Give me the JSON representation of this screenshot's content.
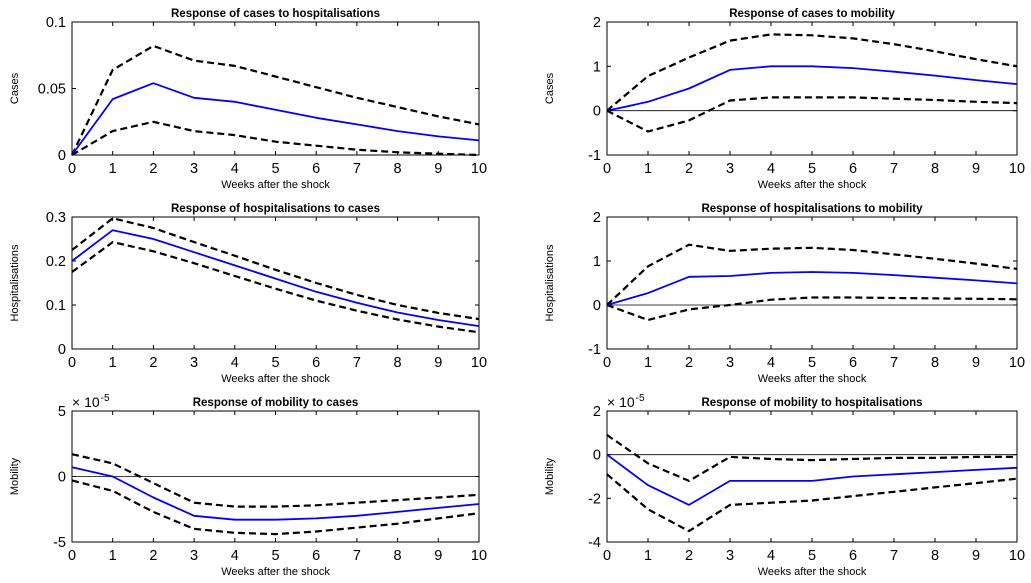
{
  "chart_data": [
    {
      "type": "line",
      "title": "Response of cases to hospitalisations",
      "xlabel": "Weeks after the shock",
      "ylabel": "Cases",
      "xlim": [
        0,
        10
      ],
      "ylim": [
        0,
        0.1
      ],
      "xticks": [
        "0",
        "1",
        "2",
        "3",
        "4",
        "5",
        "6",
        "7",
        "8",
        "9",
        "10"
      ],
      "yticks": [
        "0",
        "0.05",
        "0.1"
      ],
      "ytick_values": [
        0,
        0.05,
        0.1
      ],
      "multiplier": "",
      "multiplier_exp": "",
      "zero_line": false,
      "x": [
        0,
        1,
        2,
        3,
        4,
        5,
        6,
        7,
        8,
        9,
        10
      ],
      "series": [
        {
          "role": "upper",
          "color": "#000000",
          "values": [
            0,
            0.064,
            0.082,
            0.071,
            0.067,
            0.059,
            0.051,
            0.043,
            0.036,
            0.029,
            0.023
          ]
        },
        {
          "role": "estimate",
          "color": "#0000ff",
          "values": [
            0,
            0.042,
            0.054,
            0.043,
            0.04,
            0.034,
            0.028,
            0.023,
            0.018,
            0.014,
            0.011
          ]
        },
        {
          "role": "lower",
          "color": "#000000",
          "values": [
            0,
            0.018,
            0.025,
            0.018,
            0.015,
            0.01,
            0.007,
            0.004,
            0.002,
            0.001,
            0
          ]
        }
      ]
    },
    {
      "type": "line",
      "title": "Response of cases to mobility",
      "xlabel": "Weeks after the shock",
      "ylabel": "Cases",
      "xlim": [
        0,
        10
      ],
      "ylim": [
        -1,
        2
      ],
      "xticks": [
        "0",
        "1",
        "2",
        "3",
        "4",
        "5",
        "6",
        "7",
        "8",
        "9",
        "10"
      ],
      "yticks": [
        "-1",
        "0",
        "1",
        "2"
      ],
      "ytick_values": [
        -1,
        0,
        1,
        2
      ],
      "multiplier": "",
      "multiplier_exp": "",
      "zero_line": true,
      "x": [
        0,
        1,
        2,
        3,
        4,
        5,
        6,
        7,
        8,
        9,
        10
      ],
      "series": [
        {
          "role": "upper",
          "color": "#000000",
          "values": [
            0,
            0.78,
            1.2,
            1.58,
            1.72,
            1.7,
            1.63,
            1.5,
            1.34,
            1.16,
            1.0
          ]
        },
        {
          "role": "estimate",
          "color": "#0000ff",
          "values": [
            0,
            0.2,
            0.5,
            0.92,
            1.0,
            1.0,
            0.96,
            0.88,
            0.79,
            0.69,
            0.6
          ]
        },
        {
          "role": "lower",
          "color": "#000000",
          "values": [
            0,
            -0.47,
            -0.22,
            0.23,
            0.3,
            0.3,
            0.3,
            0.27,
            0.24,
            0.2,
            0.17
          ]
        }
      ]
    },
    {
      "type": "line",
      "title": "Response of hospitalisations to cases",
      "xlabel": "Weeks after the shock",
      "ylabel": "Hospitalisations",
      "xlim": [
        0,
        10
      ],
      "ylim": [
        0,
        0.3
      ],
      "xticks": [
        "0",
        "1",
        "2",
        "3",
        "4",
        "5",
        "6",
        "7",
        "8",
        "9",
        "10"
      ],
      "yticks": [
        "0",
        "0.1",
        "0.2",
        "0.3"
      ],
      "ytick_values": [
        0,
        0.1,
        0.2,
        0.3
      ],
      "multiplier": "",
      "multiplier_exp": "",
      "zero_line": false,
      "x": [
        0,
        1,
        2,
        3,
        4,
        5,
        6,
        7,
        8,
        9,
        10
      ],
      "series": [
        {
          "role": "upper",
          "color": "#000000",
          "values": [
            0.225,
            0.297,
            0.275,
            0.243,
            0.212,
            0.18,
            0.15,
            0.123,
            0.1,
            0.082,
            0.068
          ]
        },
        {
          "role": "estimate",
          "color": "#0000ff",
          "values": [
            0.2,
            0.27,
            0.25,
            0.22,
            0.19,
            0.16,
            0.13,
            0.105,
            0.083,
            0.066,
            0.052
          ]
        },
        {
          "role": "lower",
          "color": "#000000",
          "values": [
            0.175,
            0.243,
            0.222,
            0.195,
            0.166,
            0.137,
            0.11,
            0.087,
            0.067,
            0.051,
            0.038
          ]
        }
      ]
    },
    {
      "type": "line",
      "title": "Response of hospitalisations to mobility",
      "xlabel": "Weeks after the shock",
      "ylabel": "Hospitalisations",
      "xlim": [
        0,
        10
      ],
      "ylim": [
        -1,
        2
      ],
      "xticks": [
        "0",
        "1",
        "2",
        "3",
        "4",
        "5",
        "6",
        "7",
        "8",
        "9",
        "10"
      ],
      "yticks": [
        "-1",
        "0",
        "1",
        "2"
      ],
      "ytick_values": [
        -1,
        0,
        1,
        2
      ],
      "multiplier": "",
      "multiplier_exp": "",
      "zero_line": true,
      "x": [
        0,
        1,
        2,
        3,
        4,
        5,
        6,
        7,
        8,
        9,
        10
      ],
      "series": [
        {
          "role": "upper",
          "color": "#000000",
          "values": [
            0,
            0.88,
            1.37,
            1.23,
            1.28,
            1.3,
            1.25,
            1.15,
            1.05,
            0.94,
            0.82
          ]
        },
        {
          "role": "estimate",
          "color": "#0000ff",
          "values": [
            0,
            0.27,
            0.64,
            0.66,
            0.73,
            0.75,
            0.73,
            0.68,
            0.62,
            0.56,
            0.49
          ]
        },
        {
          "role": "lower",
          "color": "#000000",
          "values": [
            0,
            -0.34,
            -0.1,
            0.0,
            0.12,
            0.17,
            0.17,
            0.16,
            0.15,
            0.14,
            0.13
          ]
        }
      ]
    },
    {
      "type": "line",
      "title": "Response of mobility to cases",
      "xlabel": "Weeks after the shock",
      "ylabel": "Mobility",
      "xlim": [
        0,
        10
      ],
      "ylim": [
        -5,
        5
      ],
      "xticks": [
        "0",
        "1",
        "2",
        "3",
        "4",
        "5",
        "6",
        "7",
        "8",
        "9",
        "10"
      ],
      "yticks": [
        "-5",
        "0",
        "5"
      ],
      "ytick_values": [
        -5,
        0,
        5
      ],
      "multiplier": "× 10",
      "multiplier_exp": "-5",
      "zero_line": true,
      "x": [
        0,
        1,
        2,
        3,
        4,
        5,
        6,
        7,
        8,
        9,
        10
      ],
      "series": [
        {
          "role": "upper",
          "color": "#000000",
          "values": [
            1.7,
            1.0,
            -0.5,
            -2.0,
            -2.3,
            -2.3,
            -2.2,
            -2.0,
            -1.8,
            -1.6,
            -1.4
          ]
        },
        {
          "role": "estimate",
          "color": "#0000ff",
          "values": [
            0.7,
            0.0,
            -1.6,
            -3.0,
            -3.3,
            -3.3,
            -3.2,
            -3.0,
            -2.7,
            -2.4,
            -2.1
          ]
        },
        {
          "role": "lower",
          "color": "#000000",
          "values": [
            -0.3,
            -1.1,
            -2.7,
            -4.0,
            -4.3,
            -4.4,
            -4.2,
            -3.9,
            -3.6,
            -3.2,
            -2.8
          ]
        }
      ]
    },
    {
      "type": "line",
      "title": "Response of mobility to hospitalisations",
      "xlabel": "Weeks after the shock",
      "ylabel": "Mobility",
      "xlim": [
        0,
        10
      ],
      "ylim": [
        -4,
        2
      ],
      "xticks": [
        "0",
        "1",
        "2",
        "3",
        "4",
        "5",
        "6",
        "7",
        "8",
        "9",
        "10"
      ],
      "yticks": [
        "-4",
        "-2",
        "0",
        "2"
      ],
      "ytick_values": [
        -4,
        -2,
        0,
        2
      ],
      "multiplier": "× 10",
      "multiplier_exp": "-5",
      "zero_line": true,
      "x": [
        0,
        1,
        2,
        3,
        4,
        5,
        6,
        7,
        8,
        9,
        10
      ],
      "series": [
        {
          "role": "upper",
          "color": "#000000",
          "values": [
            0.9,
            -0.4,
            -1.2,
            -0.1,
            -0.2,
            -0.25,
            -0.2,
            -0.15,
            -0.15,
            -0.1,
            -0.1
          ]
        },
        {
          "role": "estimate",
          "color": "#0000ff",
          "values": [
            0,
            -1.4,
            -2.3,
            -1.2,
            -1.2,
            -1.2,
            -1.0,
            -0.9,
            -0.8,
            -0.7,
            -0.6
          ]
        },
        {
          "role": "lower",
          "color": "#000000",
          "values": [
            -0.9,
            -2.5,
            -3.5,
            -2.3,
            -2.2,
            -2.1,
            -1.9,
            -1.7,
            -1.5,
            -1.3,
            -1.1
          ]
        }
      ]
    }
  ]
}
